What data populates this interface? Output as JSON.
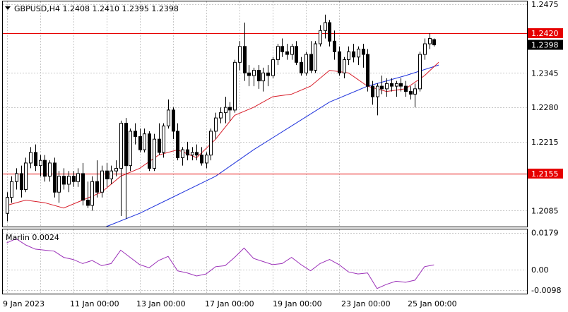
{
  "header": {
    "symbol_line": "GBPUSD,H4  1.2408 1.2410 1.2395 1.2398"
  },
  "colors": {
    "background": "#ffffff",
    "grid": "#c8c8c8",
    "bull_candle_body": "#ffffff",
    "bear_candle_body": "#000000",
    "candle_outline": "#000000",
    "ma_fast": "#d81e2a",
    "ma_slow": "#1e32dc",
    "level_line": "#e60000",
    "level_label_bg": "#e60000",
    "current_label_bg": "#000000",
    "marlin_line": "#9b30b8"
  },
  "chart_data": [
    {
      "type": "candlestick",
      "title": "GBPUSD,H4",
      "ohlc_last": {
        "open": 1.2408,
        "high": 1.241,
        "low": 1.2395,
        "close": 1.2398
      },
      "ylim": [
        1.2055,
        1.248
      ],
      "y_ticks": [
        "1.2475",
        "1.2345",
        "1.2280",
        "1.2215",
        "1.2085"
      ],
      "grid": true,
      "levels": [
        {
          "value": 1.242,
          "label": "1.2420"
        },
        {
          "value": 1.2155,
          "label": "1.2155"
        }
      ],
      "current_price": {
        "value": 1.2398,
        "label": "1.2398"
      },
      "x_ticks": [
        "9 Jan 2023",
        "11 Jan 00:00",
        "13 Jan 00:00",
        "17 Jan 00:00",
        "19 Jan 00:00",
        "23 Jan 00:00",
        "25 Jan 00:00"
      ],
      "candles": [
        [
          1.208,
          1.212,
          1.2065,
          1.211
        ],
        [
          1.211,
          1.215,
          1.21,
          1.214
        ],
        [
          1.214,
          1.2165,
          1.2125,
          1.2155
        ],
        [
          1.2155,
          1.217,
          1.211,
          1.2125
        ],
        [
          1.2125,
          1.2185,
          1.212,
          1.2175
        ],
        [
          1.2175,
          1.2205,
          1.2165,
          1.2195
        ],
        [
          1.2195,
          1.221,
          1.216,
          1.217
        ],
        [
          1.217,
          1.219,
          1.215,
          1.218
        ],
        [
          1.218,
          1.219,
          1.214,
          1.215
        ],
        [
          1.215,
          1.218,
          1.214,
          1.2175
        ],
        [
          1.2175,
          1.2185,
          1.211,
          1.212
        ],
        [
          1.212,
          1.216,
          1.21,
          1.215
        ],
        [
          1.215,
          1.2165,
          1.2125,
          1.2135
        ],
        [
          1.2135,
          1.216,
          1.212,
          1.215
        ],
        [
          1.215,
          1.216,
          1.213,
          1.214
        ],
        [
          1.214,
          1.2165,
          1.213,
          1.2155
        ],
        [
          1.2155,
          1.2175,
          1.2095,
          1.2105
        ],
        [
          1.2105,
          1.214,
          1.209,
          1.2095
        ],
        [
          1.2095,
          1.215,
          1.2085,
          1.214
        ],
        [
          1.214,
          1.218,
          1.211,
          1.212
        ],
        [
          1.212,
          1.217,
          1.211,
          1.216
        ],
        [
          1.216,
          1.2175,
          1.213,
          1.2145
        ],
        [
          1.2145,
          1.217,
          1.2135,
          1.216
        ],
        [
          1.216,
          1.218,
          1.215,
          1.2165
        ],
        [
          1.2165,
          1.2255,
          1.2075,
          1.225
        ],
        [
          1.225,
          1.226,
          1.207,
          1.217
        ],
        [
          1.217,
          1.224,
          1.216,
          1.2235
        ],
        [
          1.2235,
          1.225,
          1.221,
          1.2225
        ],
        [
          1.2225,
          1.224,
          1.2195,
          1.22
        ],
        [
          1.22,
          1.224,
          1.2195,
          1.223
        ],
        [
          1.223,
          1.2235,
          1.216,
          1.2165
        ],
        [
          1.2165,
          1.223,
          1.216,
          1.222
        ],
        [
          1.222,
          1.225,
          1.219,
          1.2195
        ],
        [
          1.2195,
          1.225,
          1.2185,
          1.2245
        ],
        [
          1.2245,
          1.2295,
          1.224,
          1.2275
        ],
        [
          1.2275,
          1.228,
          1.222,
          1.2235
        ],
        [
          1.2235,
          1.225,
          1.218,
          1.2185
        ],
        [
          1.2185,
          1.2205,
          1.217,
          1.22
        ],
        [
          1.22,
          1.2215,
          1.218,
          1.219
        ],
        [
          1.219,
          1.2205,
          1.218,
          1.2195
        ],
        [
          1.2195,
          1.221,
          1.218,
          1.219
        ],
        [
          1.219,
          1.2205,
          1.217,
          1.2175
        ],
        [
          1.2175,
          1.2195,
          1.2165,
          1.219
        ],
        [
          1.219,
          1.224,
          1.218,
          1.2235
        ],
        [
          1.2235,
          1.227,
          1.222,
          1.226
        ],
        [
          1.226,
          1.228,
          1.225,
          1.227
        ],
        [
          1.227,
          1.23,
          1.225,
          1.228
        ],
        [
          1.228,
          1.229,
          1.2255,
          1.2275
        ],
        [
          1.2275,
          1.237,
          1.227,
          1.2365
        ],
        [
          1.2365,
          1.2405,
          1.235,
          1.2395
        ],
        [
          1.2395,
          1.244,
          1.233,
          1.2345
        ],
        [
          1.2345,
          1.236,
          1.232,
          1.234
        ],
        [
          1.234,
          1.2355,
          1.232,
          1.235
        ],
        [
          1.235,
          1.236,
          1.2315,
          1.233
        ],
        [
          1.233,
          1.2355,
          1.231,
          1.2345
        ],
        [
          1.2345,
          1.236,
          1.232,
          1.234
        ],
        [
          1.234,
          1.2375,
          1.2335,
          1.237
        ],
        [
          1.237,
          1.24,
          1.236,
          1.2395
        ],
        [
          1.2395,
          1.241,
          1.2375,
          1.2385
        ],
        [
          1.2385,
          1.24,
          1.237,
          1.238
        ],
        [
          1.238,
          1.24,
          1.237,
          1.2395
        ],
        [
          1.2395,
          1.2405,
          1.236,
          1.2365
        ],
        [
          1.2365,
          1.2375,
          1.234,
          1.2345
        ],
        [
          1.2345,
          1.2385,
          1.234,
          1.238
        ],
        [
          1.238,
          1.2405,
          1.2345,
          1.235
        ],
        [
          1.235,
          1.2405,
          1.2345,
          1.24
        ],
        [
          1.24,
          1.2435,
          1.2395,
          1.2425
        ],
        [
          1.2425,
          1.2455,
          1.241,
          1.244
        ],
        [
          1.244,
          1.2445,
          1.2395,
          1.2405
        ],
        [
          1.2405,
          1.2425,
          1.237,
          1.2385
        ],
        [
          1.2385,
          1.2395,
          1.234,
          1.2345
        ],
        [
          1.2345,
          1.2375,
          1.2335,
          1.237
        ],
        [
          1.237,
          1.2395,
          1.236,
          1.2385
        ],
        [
          1.2385,
          1.24,
          1.2365,
          1.2375
        ],
        [
          1.2375,
          1.2395,
          1.236,
          1.239
        ],
        [
          1.239,
          1.24,
          1.2355,
          1.238
        ],
        [
          1.238,
          1.239,
          1.231,
          1.232
        ],
        [
          1.232,
          1.233,
          1.2285,
          1.23
        ],
        [
          1.23,
          1.2325,
          1.2265,
          1.232
        ],
        [
          1.232,
          1.234,
          1.2305,
          1.2315
        ],
        [
          1.2315,
          1.2335,
          1.23,
          1.2325
        ],
        [
          1.2325,
          1.2335,
          1.231,
          1.232
        ],
        [
          1.232,
          1.233,
          1.23,
          1.2325
        ],
        [
          1.2325,
          1.2335,
          1.231,
          1.232
        ],
        [
          1.232,
          1.233,
          1.23,
          1.231
        ],
        [
          1.231,
          1.232,
          1.2295,
          1.2305
        ],
        [
          1.2305,
          1.2325,
          1.228,
          1.2315
        ],
        [
          1.2315,
          1.2385,
          1.231,
          1.238
        ],
        [
          1.238,
          1.241,
          1.237,
          1.24
        ],
        [
          1.24,
          1.242,
          1.239,
          1.241
        ],
        [
          1.2408,
          1.241,
          1.2395,
          1.2398
        ]
      ],
      "ma_fast": {
        "x": [
          0,
          4,
          8,
          12,
          16,
          20,
          24,
          28,
          32,
          36,
          40,
          44,
          48,
          52,
          56,
          60,
          64,
          68,
          72,
          76,
          80,
          84,
          88,
          91
        ],
        "y": [
          1.2095,
          1.2105,
          1.21,
          1.209,
          1.2105,
          1.212,
          1.215,
          1.2165,
          1.219,
          1.22,
          1.2185,
          1.222,
          1.2265,
          1.228,
          1.23,
          1.2305,
          1.232,
          1.235,
          1.2345,
          1.232,
          1.231,
          1.2315,
          1.234,
          1.2365
        ]
      },
      "ma_slow": {
        "x": [
          21,
          28,
          36,
          44,
          52,
          60,
          68,
          76,
          84,
          91
        ],
        "y": [
          1.2055,
          1.208,
          1.2115,
          1.215,
          1.22,
          1.2245,
          1.229,
          1.232,
          1.234,
          1.236
        ]
      }
    },
    {
      "type": "line",
      "title": "Marlin 0.0024",
      "ylim": [
        -0.0115,
        0.0195
      ],
      "y_ticks": [
        "0.0179",
        "0.00",
        "-0.0098"
      ],
      "grid": true,
      "series": [
        {
          "x": [
            0,
            2,
            4,
            6,
            8,
            10,
            12,
            14,
            16,
            18,
            20,
            22,
            24,
            26,
            28,
            30,
            32,
            34,
            36,
            38,
            40,
            42,
            44,
            46,
            48,
            50,
            52,
            54,
            56,
            58,
            60,
            62,
            64,
            66,
            68,
            70,
            72,
            74,
            76,
            78,
            80,
            82,
            84,
            86,
            88,
            90
          ],
          "values": [
            0.013,
            0.015,
            0.012,
            0.01,
            0.0095,
            0.009,
            0.006,
            0.005,
            0.003,
            0.0045,
            0.002,
            0.003,
            0.0095,
            0.006,
            0.0025,
            0.001,
            0.0045,
            0.0065,
            -0.0005,
            -0.0015,
            -0.003,
            -0.002,
            0.0015,
            0.002,
            0.006,
            0.0105,
            0.0055,
            0.004,
            0.0025,
            0.003,
            0.006,
            0.0025,
            -0.0005,
            0.003,
            0.005,
            0.0025,
            -0.001,
            -0.002,
            -0.0015,
            -0.009,
            -0.007,
            -0.0055,
            -0.006,
            -0.005,
            0.0015,
            0.0024
          ]
        }
      ]
    }
  ]
}
